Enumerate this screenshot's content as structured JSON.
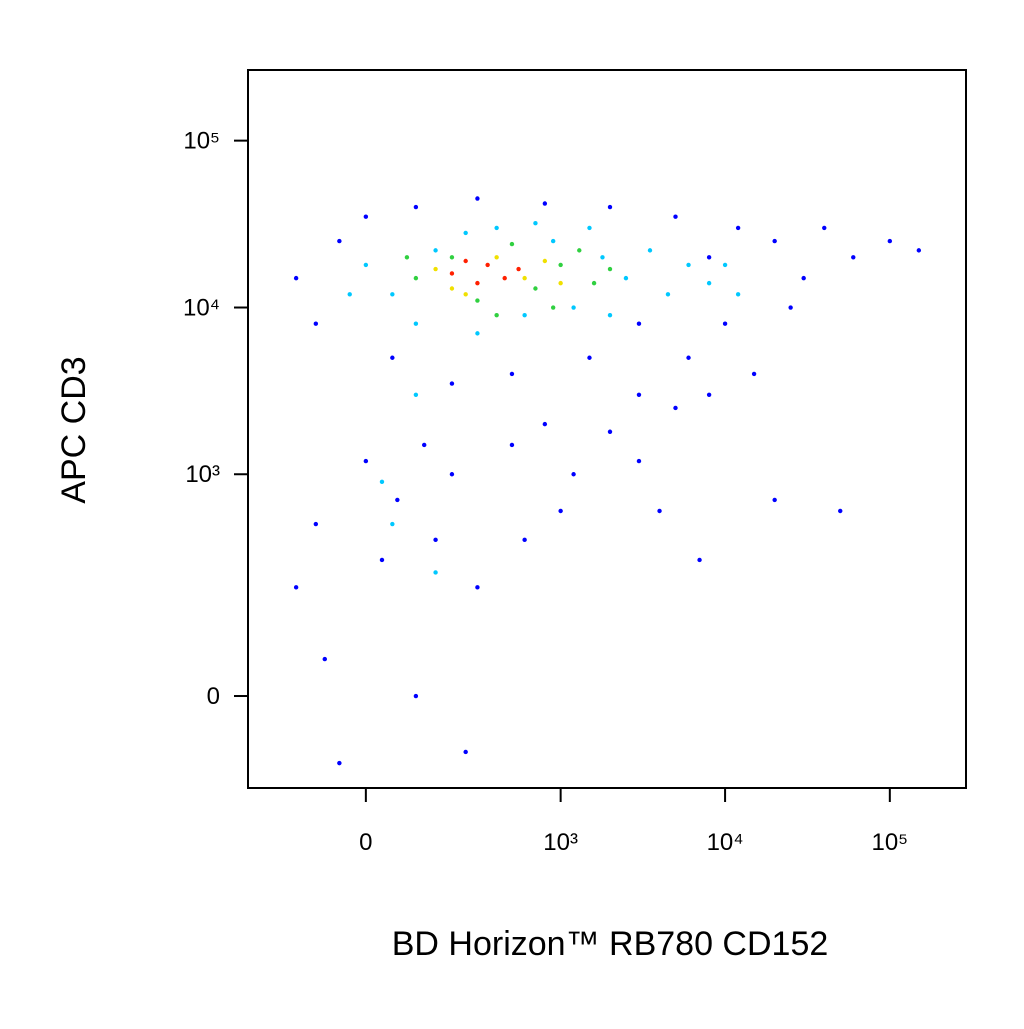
{
  "chart_data": {
    "type": "scatter",
    "x_label": "BD Horizon™ RB780 CD152",
    "y_label": "APC CD3",
    "xscale": "biexponential",
    "yscale": "biexponential",
    "xlim": [
      -330,
      290000
    ],
    "ylim": [
      -154,
      265000
    ],
    "xticks": [
      0,
      {
        "value": 1000,
        "label": "10³"
      },
      {
        "value": 10000,
        "label": "10⁴"
      },
      {
        "value": 100000,
        "label": "10⁵"
      }
    ],
    "yticks": [
      0,
      {
        "value": 1000,
        "label": "10³"
      },
      {
        "value": 10000,
        "label": "10⁴"
      },
      {
        "value": 100000,
        "label": "10⁵"
      }
    ],
    "series": [
      {
        "color": "#0000ff",
        "x": [
          -150,
          -100,
          -50,
          0,
          50,
          100,
          200,
          300,
          500,
          800,
          1500,
          2000,
          3000,
          5000,
          8000,
          12000,
          20000,
          30000,
          40000,
          60000,
          3000,
          6000,
          10000,
          25000,
          100000,
          150000,
          -150,
          -100,
          -50,
          0,
          30,
          60,
          100,
          150,
          200,
          250,
          -80,
          120,
          500,
          800,
          1200,
          2000,
          3000,
          5000,
          4000,
          300,
          600,
          1000,
          8000,
          15000,
          20000,
          50000,
          7000
        ],
        "y": [
          15000,
          8000,
          25000,
          35000,
          5000,
          40000,
          3500,
          45000,
          4000,
          42000,
          5000,
          40000,
          8000,
          35000,
          20000,
          30000,
          25000,
          15000,
          30000,
          20000,
          3000,
          5000,
          8000,
          10000,
          25000,
          22000,
          200,
          500,
          -100,
          1200,
          300,
          700,
          0,
          400,
          1000,
          -80,
          50,
          1500,
          1500,
          2000,
          1000,
          1800,
          1200,
          2500,
          600,
          200,
          400,
          600,
          3000,
          4000,
          700,
          600,
          300
        ]
      },
      {
        "color": "#00c8ff",
        "x": [
          50,
          100,
          150,
          250,
          400,
          600,
          900,
          1200,
          1800,
          2500,
          3500,
          4500,
          6000,
          8000,
          0,
          -30,
          300,
          700,
          1500,
          2000,
          10000,
          12000,
          100,
          50,
          150,
          30
        ],
        "y": [
          12000,
          8000,
          22000,
          28000,
          30000,
          9000,
          25000,
          10000,
          20000,
          15000,
          22000,
          12000,
          18000,
          14000,
          18000,
          12000,
          7000,
          32000,
          30000,
          9000,
          18000,
          12000,
          3000,
          500,
          250,
          900
        ]
      },
      {
        "color": "#30d040",
        "x": [
          100,
          200,
          300,
          500,
          700,
          1000,
          1300,
          1600,
          2000,
          80,
          400,
          900
        ],
        "y": [
          15000,
          20000,
          11000,
          24000,
          13000,
          18000,
          22000,
          14000,
          17000,
          20000,
          9000,
          10000
        ]
      },
      {
        "color": "#f0e000",
        "x": [
          150,
          250,
          400,
          600,
          800,
          1000,
          200
        ],
        "y": [
          17000,
          12000,
          20000,
          15000,
          19000,
          14000,
          13000
        ]
      },
      {
        "color": "#ff2000",
        "x": [
          200,
          300,
          350,
          450,
          550,
          250
        ],
        "y": [
          16000,
          14000,
          18000,
          15000,
          17000,
          19000
        ]
      }
    ]
  }
}
